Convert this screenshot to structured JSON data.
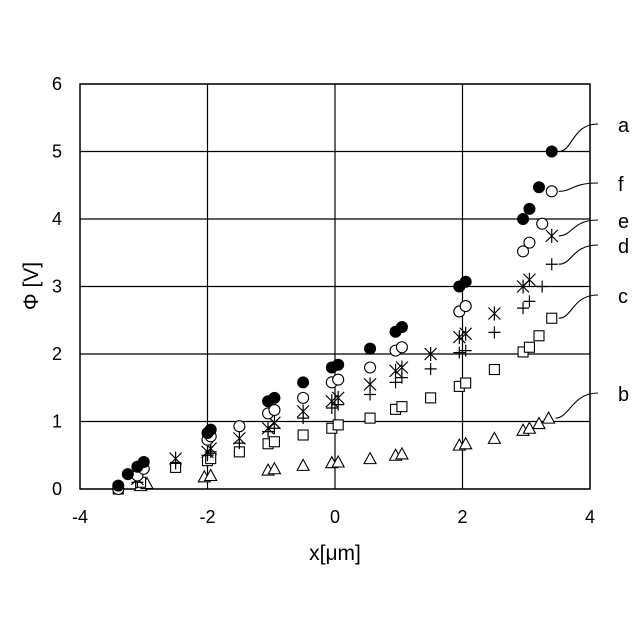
{
  "chart_data": {
    "type": "scatter",
    "xlabel": "x[μm]",
    "ylabel": "Φ [V]",
    "xlim": [
      -4,
      4
    ],
    "ylim": [
      0,
      6
    ],
    "x_ticks": [
      -4,
      -2,
      0,
      2,
      4
    ],
    "y_ticks": [
      0,
      1,
      2,
      3,
      4,
      5,
      6
    ],
    "x_tick_labels": [
      "-4",
      "-2",
      "0",
      "2",
      "4"
    ],
    "y_tick_labels": [
      "0",
      "1",
      "2",
      "3",
      "4",
      "5",
      "6"
    ],
    "grid": true,
    "series": [
      {
        "name": "a",
        "marker": "filled-circle",
        "points": [
          [
            -3.4,
            0.05
          ],
          [
            -3.25,
            0.22
          ],
          [
            -3.1,
            0.33
          ],
          [
            -3.0,
            0.4
          ],
          [
            -2.0,
            0.83
          ],
          [
            -1.95,
            0.88
          ],
          [
            -1.05,
            1.3
          ],
          [
            -0.95,
            1.35
          ],
          [
            -0.5,
            1.58
          ],
          [
            -0.05,
            1.8
          ],
          [
            0.05,
            1.84
          ],
          [
            0.55,
            2.08
          ],
          [
            0.95,
            2.33
          ],
          [
            1.05,
            2.4
          ],
          [
            1.95,
            3.0
          ],
          [
            2.05,
            3.07
          ],
          [
            2.95,
            4.0
          ],
          [
            3.05,
            4.15
          ],
          [
            3.2,
            4.47
          ],
          [
            3.4,
            5.0
          ]
        ]
      },
      {
        "name": "f",
        "marker": "open-circle",
        "points": [
          [
            -3.4,
            0.0
          ],
          [
            -3.1,
            0.2
          ],
          [
            -3.0,
            0.3
          ],
          [
            -2.0,
            0.73
          ],
          [
            -1.95,
            0.78
          ],
          [
            -1.5,
            0.93
          ],
          [
            -1.05,
            1.12
          ],
          [
            -0.95,
            1.17
          ],
          [
            -0.5,
            1.35
          ],
          [
            -0.05,
            1.58
          ],
          [
            0.05,
            1.62
          ],
          [
            0.55,
            1.8
          ],
          [
            0.95,
            2.05
          ],
          [
            1.05,
            2.1
          ],
          [
            1.95,
            2.63
          ],
          [
            2.05,
            2.71
          ],
          [
            2.95,
            3.52
          ],
          [
            3.05,
            3.65
          ],
          [
            3.25,
            3.93
          ],
          [
            3.4,
            4.41
          ]
        ]
      },
      {
        "name": "e",
        "marker": "asterisk",
        "points": [
          [
            -3.1,
            0.15
          ],
          [
            -2.5,
            0.45
          ],
          [
            -2.0,
            0.55
          ],
          [
            -1.95,
            0.6
          ],
          [
            -1.5,
            0.75
          ],
          [
            -1.05,
            0.9
          ],
          [
            -0.95,
            0.98
          ],
          [
            -0.5,
            1.15
          ],
          [
            -0.05,
            1.3
          ],
          [
            0.05,
            1.35
          ],
          [
            0.55,
            1.55
          ],
          [
            0.95,
            1.75
          ],
          [
            1.05,
            1.8
          ],
          [
            1.5,
            2.0
          ],
          [
            1.95,
            2.25
          ],
          [
            2.05,
            2.3
          ],
          [
            2.5,
            2.6
          ],
          [
            2.95,
            3.0
          ],
          [
            3.05,
            3.1
          ],
          [
            3.4,
            3.75
          ]
        ]
      },
      {
        "name": "d",
        "marker": "plus",
        "points": [
          [
            -3.1,
            0.1
          ],
          [
            -2.5,
            0.38
          ],
          [
            -2.0,
            0.5
          ],
          [
            -1.95,
            0.55
          ],
          [
            -1.5,
            0.68
          ],
          [
            -1.05,
            0.85
          ],
          [
            -0.95,
            0.9
          ],
          [
            -0.5,
            1.05
          ],
          [
            -0.05,
            1.2
          ],
          [
            0.05,
            1.25
          ],
          [
            0.55,
            1.4
          ],
          [
            0.95,
            1.58
          ],
          [
            1.05,
            1.65
          ],
          [
            1.5,
            1.78
          ],
          [
            1.95,
            2.02
          ],
          [
            2.05,
            2.05
          ],
          [
            2.5,
            2.32
          ],
          [
            2.95,
            2.68
          ],
          [
            3.05,
            2.78
          ],
          [
            3.25,
            3.0
          ],
          [
            3.4,
            3.33
          ]
        ]
      },
      {
        "name": "c",
        "marker": "open-square",
        "points": [
          [
            -3.4,
            0.0
          ],
          [
            -3.05,
            0.1
          ],
          [
            -2.5,
            0.32
          ],
          [
            -2.0,
            0.42
          ],
          [
            -1.95,
            0.45
          ],
          [
            -1.5,
            0.55
          ],
          [
            -1.05,
            0.67
          ],
          [
            -0.95,
            0.7
          ],
          [
            -0.5,
            0.8
          ],
          [
            -0.05,
            0.9
          ],
          [
            0.05,
            0.95
          ],
          [
            0.55,
            1.05
          ],
          [
            0.95,
            1.18
          ],
          [
            1.05,
            1.22
          ],
          [
            1.5,
            1.35
          ],
          [
            1.95,
            1.52
          ],
          [
            2.05,
            1.57
          ],
          [
            2.5,
            1.77
          ],
          [
            2.95,
            2.03
          ],
          [
            3.05,
            2.1
          ],
          [
            3.2,
            2.27
          ],
          [
            3.4,
            2.53
          ]
        ]
      },
      {
        "name": "b",
        "marker": "open-triangle",
        "points": [
          [
            -3.05,
            0.05
          ],
          [
            -2.95,
            0.08
          ],
          [
            -2.05,
            0.18
          ],
          [
            -1.95,
            0.2
          ],
          [
            -1.05,
            0.28
          ],
          [
            -0.95,
            0.3
          ],
          [
            -0.5,
            0.35
          ],
          [
            -0.05,
            0.39
          ],
          [
            0.05,
            0.4
          ],
          [
            0.55,
            0.45
          ],
          [
            0.95,
            0.5
          ],
          [
            1.05,
            0.52
          ],
          [
            1.95,
            0.65
          ],
          [
            2.05,
            0.67
          ],
          [
            2.5,
            0.75
          ],
          [
            2.95,
            0.87
          ],
          [
            3.05,
            0.9
          ],
          [
            3.2,
            0.97
          ],
          [
            3.35,
            1.05
          ]
        ]
      }
    ]
  }
}
